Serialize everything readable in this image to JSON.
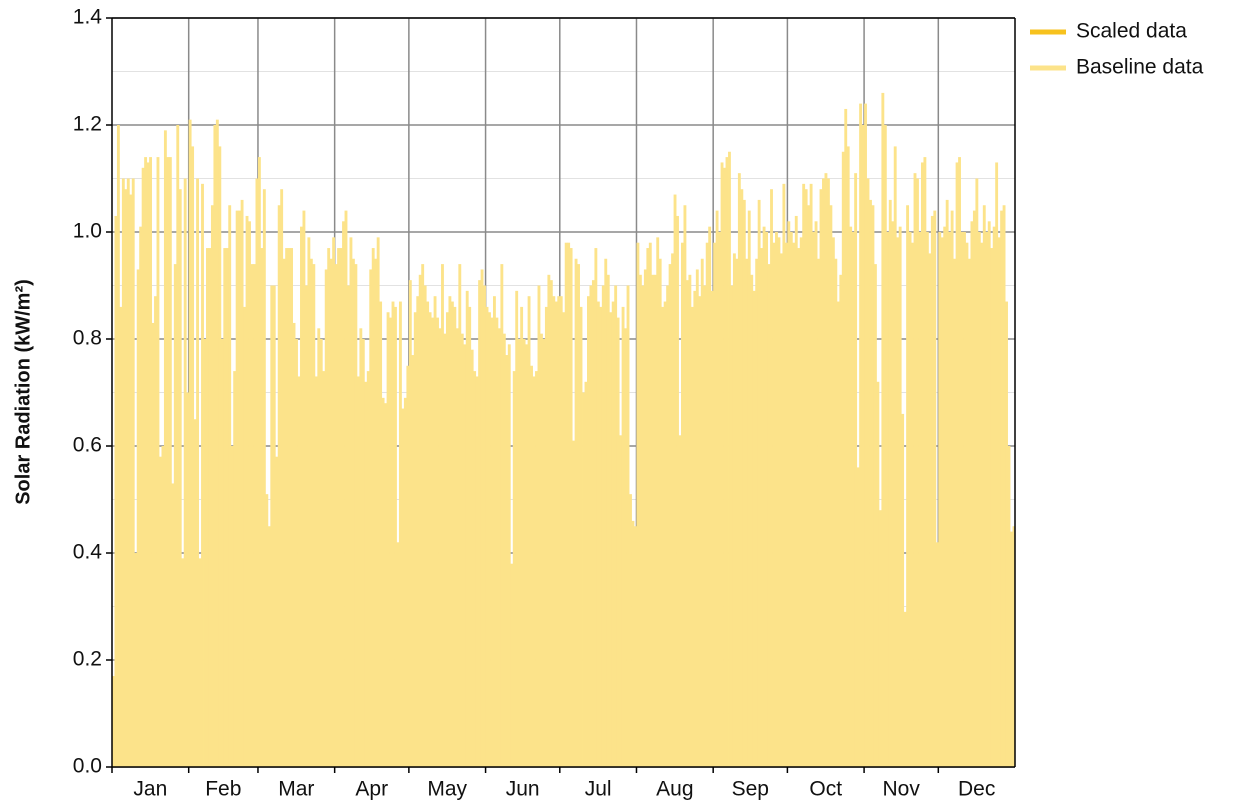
{
  "chart_data": {
    "type": "bar",
    "y_label": "Solar Radiation (kW/m²)",
    "categories": [
      "Jan",
      "Feb",
      "Mar",
      "Apr",
      "May",
      "Jun",
      "Jul",
      "Aug",
      "Sep",
      "Oct",
      "Nov",
      "Dec"
    ],
    "series": [
      {
        "name": "Scaled data",
        "color": "#f7c21e"
      },
      {
        "name": "Baseline data",
        "color": "#fce38a",
        "values": [
          [
            0.17,
            1.03,
            1.2,
            0.86,
            1.1,
            1.08,
            1.1,
            1.07,
            1.1,
            0.4,
            0.93,
            1.01,
            1.12,
            1.14,
            1.13,
            1.14,
            0.83,
            0.88,
            1.14,
            0.58,
            0.6,
            1.19,
            1.14,
            1.14,
            0.53,
            0.94,
            1.2,
            1.08,
            0.39,
            1.1,
            0.7
          ],
          [
            1.21,
            1.16,
            0.65,
            1.1,
            0.39,
            1.09,
            0.8,
            0.97,
            0.97,
            1.05,
            1.2,
            1.21,
            1.16,
            0.8,
            0.97,
            0.97,
            1.05,
            0.6,
            0.74,
            1.04,
            1.04,
            1.06,
            0.86,
            1.03,
            1.02,
            0.94,
            0.94,
            1.1
          ],
          [
            1.14,
            0.97,
            1.08,
            0.51,
            0.45,
            0.9,
            0.9,
            0.58,
            1.05,
            1.08,
            0.95,
            0.97,
            0.97,
            0.97,
            0.83,
            0.8,
            0.73,
            1.01,
            1.04,
            0.9,
            0.99,
            0.95,
            0.94,
            0.73,
            0.82,
            0.8,
            0.74,
            0.93,
            0.97,
            0.95,
            0.99
          ],
          [
            0.94,
            0.97,
            0.97,
            1.02,
            1.04,
            0.9,
            0.99,
            0.95,
            0.94,
            0.73,
            0.82,
            0.8,
            0.72,
            0.74,
            0.93,
            0.97,
            0.95,
            0.99,
            0.87,
            0.69,
            0.68,
            0.85,
            0.84,
            0.87,
            0.86,
            0.42,
            0.87,
            0.67,
            0.69,
            0.75
          ],
          [
            0.91,
            0.77,
            0.85,
            0.88,
            0.92,
            0.94,
            0.9,
            0.87,
            0.85,
            0.84,
            0.88,
            0.84,
            0.82,
            0.94,
            0.81,
            0.85,
            0.88,
            0.87,
            0.86,
            0.82,
            0.94,
            0.81,
            0.79,
            0.89,
            0.86,
            0.78,
            0.74,
            0.73,
            0.91,
            0.93,
            0.9
          ],
          [
            0.86,
            0.85,
            0.84,
            0.88,
            0.84,
            0.82,
            0.94,
            0.81,
            0.77,
            0.79,
            0.38,
            0.74,
            0.89,
            0.8,
            0.86,
            0.8,
            0.79,
            0.88,
            0.75,
            0.73,
            0.74,
            0.9,
            0.81,
            0.8,
            0.86,
            0.92,
            0.91,
            0.88,
            0.87,
            0.88
          ],
          [
            0.88,
            0.85,
            0.98,
            0.98,
            0.97,
            0.61,
            0.95,
            0.94,
            0.86,
            0.7,
            0.72,
            0.88,
            0.9,
            0.91,
            0.97,
            0.87,
            0.86,
            0.9,
            0.95,
            0.92,
            0.85,
            0.87,
            0.9,
            0.84,
            0.62,
            0.86,
            0.82,
            0.9,
            0.51,
            0.46,
            0.45
          ],
          [
            0.98,
            0.92,
            0.9,
            0.93,
            0.97,
            0.98,
            0.92,
            0.92,
            0.99,
            0.95,
            0.86,
            0.87,
            0.9,
            0.94,
            0.96,
            1.07,
            1.03,
            0.62,
            0.98,
            1.05,
            0.91,
            0.92,
            0.86,
            0.89,
            0.93,
            0.88,
            0.95,
            0.9,
            0.98,
            1.01,
            0.89
          ],
          [
            0.98,
            1.04,
            1.0,
            1.13,
            1.12,
            1.14,
            1.15,
            0.9,
            0.96,
            0.95,
            1.11,
            1.08,
            1.06,
            0.95,
            1.04,
            0.92,
            0.89,
            0.95,
            1.06,
            0.97,
            1.01,
            1.0,
            0.94,
            1.08,
            0.98,
            1.0,
            0.99,
            0.96,
            1.09,
            0.98
          ],
          [
            1.02,
            1.0,
            0.98,
            1.03,
            0.97,
            0.99,
            1.09,
            1.08,
            1.05,
            1.09,
            1.0,
            1.02,
            0.95,
            1.08,
            1.1,
            1.11,
            1.1,
            1.05,
            0.99,
            0.95,
            0.87,
            0.92,
            1.15,
            1.23,
            1.16,
            1.01,
            1.0,
            1.11,
            0.56,
            1.24,
            1.2
          ],
          [
            1.24,
            1.1,
            1.06,
            1.05,
            0.94,
            0.72,
            0.48,
            1.26,
            1.2,
            1.0,
            1.06,
            1.02,
            1.16,
            0.99,
            1.01,
            0.66,
            0.29,
            1.05,
            1.0,
            0.98,
            1.11,
            1.1,
            1.0,
            1.13,
            1.14,
            1.0,
            0.96,
            1.03,
            1.04,
            0.42
          ],
          [
            1.0,
            0.99,
            1.01,
            1.06,
            1.0,
            1.04,
            0.95,
            1.13,
            1.14,
            1.0,
            1.0,
            0.98,
            0.95,
            1.02,
            1.04,
            1.1,
            1.0,
            0.98,
            1.05,
            1.0,
            1.02,
            0.97,
            1.01,
            1.13,
            0.99,
            1.04,
            1.05,
            0.87,
            0.6,
            0.44,
            0.45
          ]
        ]
      }
    ],
    "ylim": [
      0,
      1.4
    ],
    "yticks": [
      {
        "value": 0,
        "label": "0.0"
      },
      0.2,
      0.4,
      0.6,
      0.8,
      {
        "value": 1,
        "label": "1.0"
      },
      1.2,
      1.4
    ],
    "minor_yticks": [
      0.1,
      0.3,
      0.5,
      0.7,
      0.9,
      1.1,
      1.3
    ],
    "grid": true,
    "legend": "outside-right"
  }
}
